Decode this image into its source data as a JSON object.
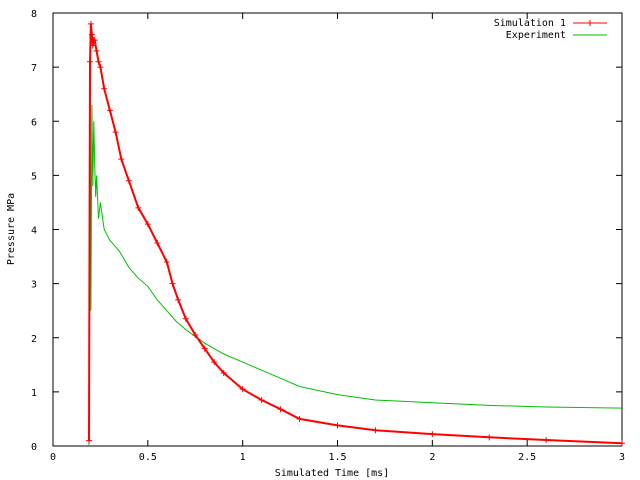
{
  "chart_data": {
    "type": "line",
    "title": "",
    "xlabel": "Simulated Time [ms]",
    "ylabel": "Pressure MPa",
    "xlim": [
      0,
      3
    ],
    "ylim": [
      0,
      8
    ],
    "xticks": [
      0,
      0.5,
      1,
      1.5,
      2,
      2.5,
      3
    ],
    "xtick_labels": [
      "0",
      "0.5",
      "1",
      "1.5",
      "2",
      "2.5",
      "3"
    ],
    "yticks": [
      0,
      1,
      2,
      3,
      4,
      5,
      6,
      7,
      8
    ],
    "ytick_labels": [
      "0",
      "1",
      "2",
      "3",
      "4",
      "5",
      "6",
      "7",
      "8"
    ],
    "grid": false,
    "legend_position": "top-right",
    "series": [
      {
        "name": "Simulation 1",
        "color": "#ff0000",
        "marker": "plus",
        "x": [
          0.19,
          0.195,
          0.2,
          0.205,
          0.21,
          0.215,
          0.22,
          0.23,
          0.24,
          0.25,
          0.27,
          0.3,
          0.33,
          0.36,
          0.4,
          0.45,
          0.5,
          0.55,
          0.6,
          0.63,
          0.66,
          0.7,
          0.75,
          0.8,
          0.85,
          0.9,
          1.0,
          1.1,
          1.2,
          1.3,
          1.5,
          1.7,
          2.0,
          2.3,
          2.6,
          3.0
        ],
        "y": [
          0.1,
          7.1,
          7.8,
          7.6,
          7.4,
          7.5,
          7.5,
          7.3,
          7.1,
          7.0,
          6.6,
          6.2,
          5.8,
          5.3,
          4.9,
          4.4,
          4.1,
          3.75,
          3.4,
          3.0,
          2.7,
          2.35,
          2.05,
          1.8,
          1.55,
          1.35,
          1.05,
          0.85,
          0.68,
          0.5,
          0.38,
          0.29,
          0.22,
          0.16,
          0.11,
          0.05
        ]
      },
      {
        "name": "Experiment",
        "color": "#00c000",
        "marker": "none",
        "x": [
          0.19,
          0.195,
          0.2,
          0.205,
          0.21,
          0.215,
          0.22,
          0.225,
          0.23,
          0.24,
          0.25,
          0.27,
          0.3,
          0.35,
          0.4,
          0.45,
          0.5,
          0.55,
          0.6,
          0.65,
          0.7,
          0.8,
          0.9,
          1.0,
          1.1,
          1.2,
          1.3,
          1.5,
          1.7,
          2.0,
          2.3,
          2.6,
          3.0
        ],
        "y": [
          0.0,
          7.6,
          2.5,
          6.3,
          4.8,
          6.0,
          5.2,
          4.6,
          5.0,
          4.2,
          4.5,
          4.0,
          3.8,
          3.6,
          3.3,
          3.1,
          2.95,
          2.7,
          2.5,
          2.3,
          2.15,
          1.9,
          1.7,
          1.55,
          1.4,
          1.25,
          1.1,
          0.95,
          0.85,
          0.8,
          0.75,
          0.72,
          0.7
        ]
      }
    ]
  }
}
